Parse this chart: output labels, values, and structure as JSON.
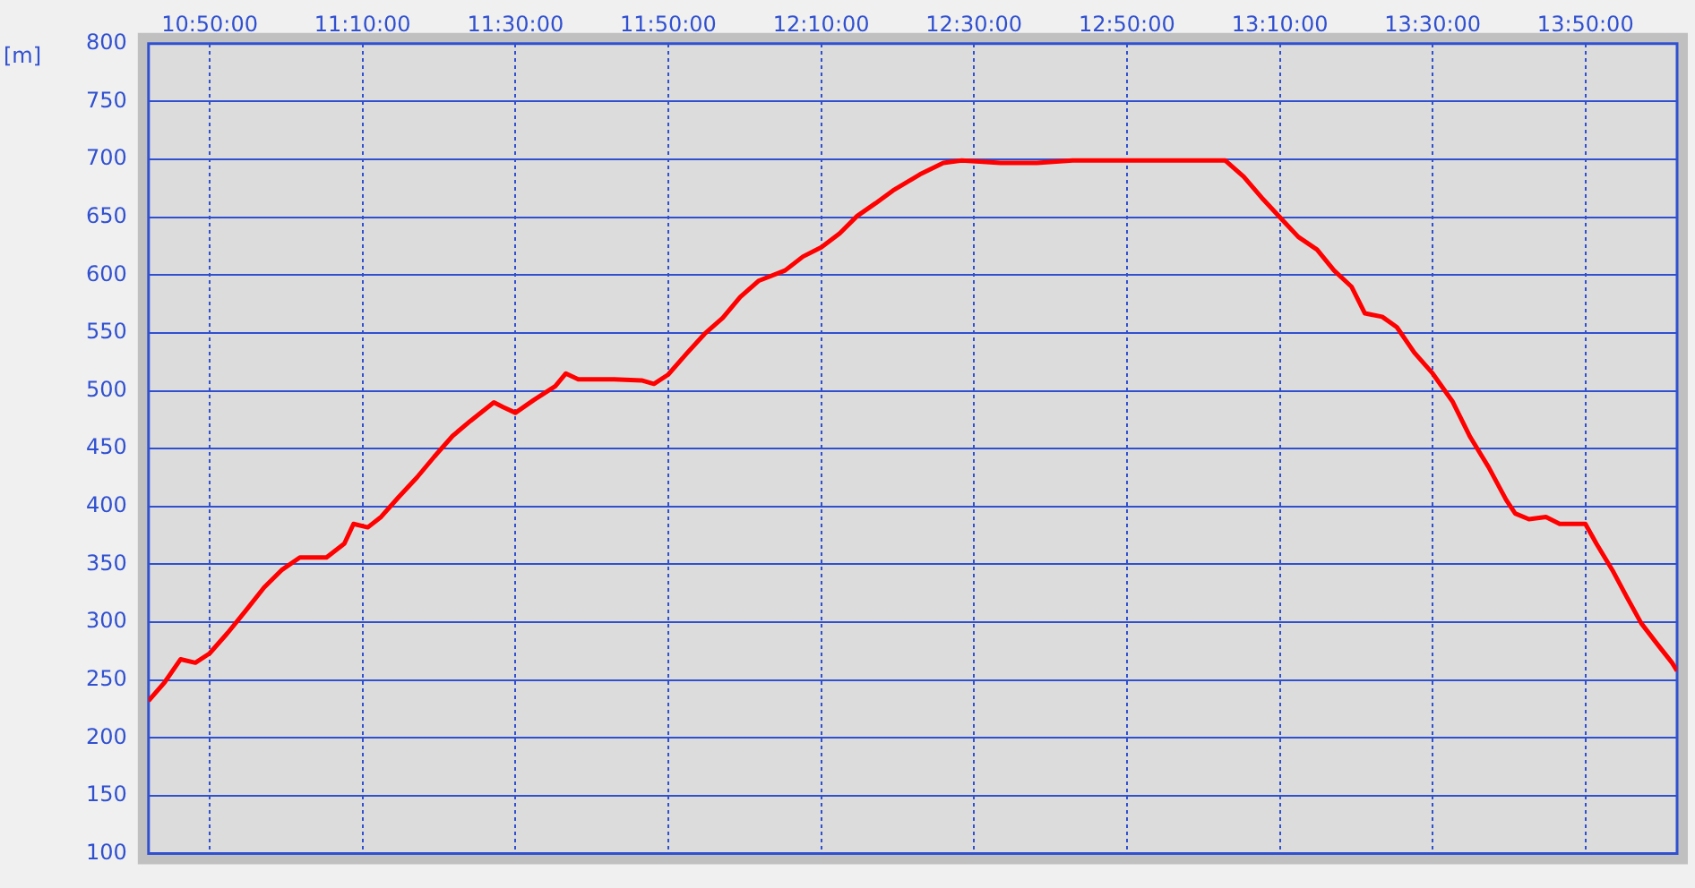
{
  "chart_data": {
    "type": "line",
    "ylabel": "[m]",
    "grid": true,
    "marker": "none",
    "line_style": "solid",
    "xlim": [
      10.7,
      14.033
    ],
    "ylim": [
      100,
      800
    ],
    "xticks": [
      {
        "value": 10.8333,
        "label": "10:50:00"
      },
      {
        "value": 11.1667,
        "label": "11:10:00"
      },
      {
        "value": 11.5,
        "label": "11:30:00"
      },
      {
        "value": 11.8333,
        "label": "11:50:00"
      },
      {
        "value": 12.1667,
        "label": "12:10:00"
      },
      {
        "value": 12.5,
        "label": "12:30:00"
      },
      {
        "value": 12.8333,
        "label": "12:50:00"
      },
      {
        "value": 13.1667,
        "label": "13:10:00"
      },
      {
        "value": 13.5,
        "label": "13:30:00"
      },
      {
        "value": 13.8333,
        "label": "13:50:00"
      }
    ],
    "yticks": [
      100,
      150,
      200,
      250,
      300,
      350,
      400,
      450,
      500,
      550,
      600,
      650,
      700,
      750,
      800
    ],
    "series": [
      {
        "color": "#ff0000",
        "x": [
          10.7,
          10.735,
          10.77,
          10.802,
          10.833,
          10.873,
          10.912,
          10.952,
          10.99,
          11.03,
          11.088,
          11.127,
          11.147,
          11.178,
          11.207,
          11.245,
          11.285,
          11.323,
          11.363,
          11.402,
          11.453,
          11.473,
          11.5,
          11.54,
          11.587,
          11.61,
          11.637,
          11.715,
          11.775,
          11.802,
          11.833,
          11.873,
          11.912,
          11.952,
          11.99,
          12.03,
          12.088,
          12.127,
          12.167,
          12.207,
          12.245,
          12.285,
          12.323,
          12.382,
          12.433,
          12.473,
          12.558,
          12.637,
          12.715,
          12.873,
          13.048,
          13.088,
          13.127,
          13.167,
          13.207,
          13.248,
          13.285,
          13.323,
          13.352,
          13.39,
          13.422,
          13.46,
          13.5,
          13.543,
          13.582,
          13.622,
          13.66,
          13.68,
          13.71,
          13.747,
          13.777,
          13.833,
          13.857,
          13.892,
          13.923,
          13.955,
          13.99,
          14.022,
          14.033
        ],
        "values": [
          232,
          248,
          268,
          265,
          273,
          291,
          310,
          330,
          345,
          356,
          356,
          368,
          385,
          382,
          391,
          408,
          425,
          443,
          461,
          474,
          490,
          486,
          481,
          492,
          504,
          515,
          510,
          510,
          509,
          506,
          514,
          532,
          549,
          563,
          581,
          595,
          604,
          616,
          624,
          636,
          651,
          662,
          673,
          687,
          697,
          699,
          697,
          697,
          699,
          699,
          699,
          685,
          667,
          650,
          633,
          622,
          604,
          590,
          567,
          564,
          555,
          533,
          515,
          491,
          460,
          434,
          406,
          394,
          389,
          391,
          385,
          385,
          368,
          345,
          322,
          299,
          281,
          265,
          258
        ]
      }
    ]
  }
}
